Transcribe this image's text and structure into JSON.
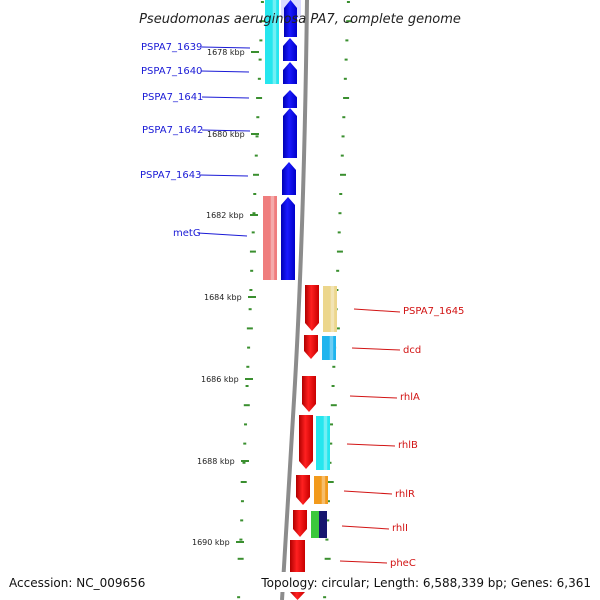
{
  "title": "Pseudomonas aeruginosa PA7, complete genome",
  "footer": {
    "accession": "Accession: NC_009656",
    "topology": "Topology: circular; Length: 6,588,339 bp; Genes: 6,361"
  },
  "colors": {
    "backbone": "#8c8c8c",
    "tick": "#3a8f2f",
    "left_label": "#1a1ad6",
    "right_label": "#d21414",
    "cds_forward": "#0000e6",
    "cds_reverse": "#f00000"
  },
  "scale_labels": [
    {
      "text": "1678 kbp",
      "kbp": 1678
    },
    {
      "text": "1680 kbp",
      "kbp": 1680
    },
    {
      "text": "1682 kbp",
      "kbp": 1682
    },
    {
      "text": "1684 kbp",
      "kbp": 1684
    },
    {
      "text": "1686 kbp",
      "kbp": 1686
    },
    {
      "text": "1688 kbp",
      "kbp": 1688
    },
    {
      "text": "1690 kbp",
      "kbp": 1690
    }
  ],
  "left_genes": [
    "PSPA7_1639",
    "PSPA7_1640",
    "PSPA7_1641",
    "PSPA7_1642",
    "PSPA7_1643",
    "metG"
  ],
  "right_genes": [
    "PSPA7_1645",
    "dcd",
    "rhlA",
    "rhlB",
    "rhlR",
    "rhlI",
    "pheC"
  ],
  "feature_colors": {
    "cyan": "#25e6ee",
    "pink": "#ef7d7d",
    "tan": "#ecd68c",
    "sky": "#1fb4ee",
    "orange": "#f29a1c",
    "green": "#3cc83c",
    "navy": "#16166e"
  }
}
